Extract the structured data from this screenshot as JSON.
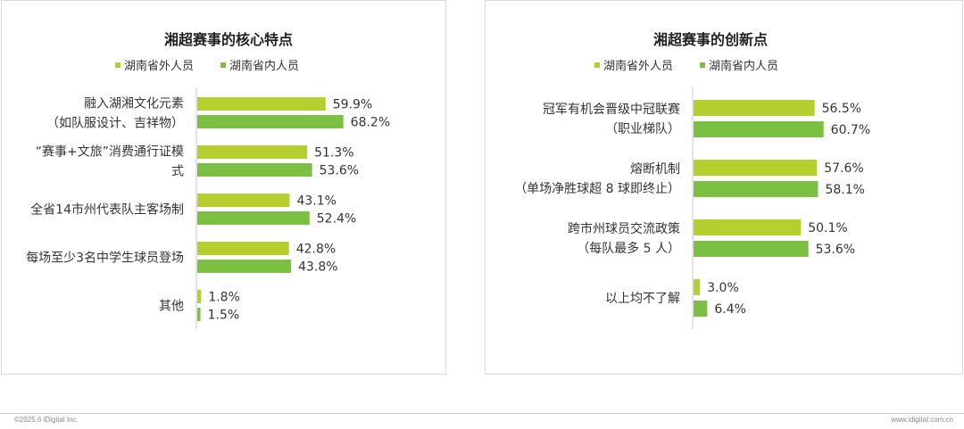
{
  "colors": {
    "outside": "#b5cf2f",
    "inside": "#7cc043",
    "axis": "#c8c8c8"
  },
  "footer": {
    "copyright": "©2025.6 iDigital Inc.",
    "website": "www.idigital.com.cn"
  },
  "chart_data": [
    {
      "type": "bar",
      "orientation": "horizontal",
      "title": "湘超赛事的核心特点",
      "legend": [
        "湖南省外人员",
        "湖南省内人员"
      ],
      "legend_position": "top",
      "categories": [
        [
          "融入湖湘文化元素",
          "（如队服设计、吉祥物）"
        ],
        [
          "“赛事+文旅”消费通行证模",
          "式"
        ],
        [
          "全省14市州代表队主客场制"
        ],
        [
          "每场至少3名中学生球员登场"
        ],
        [
          "其他"
        ]
      ],
      "series": [
        {
          "name": "湖南省外人员",
          "values": [
            59.9,
            51.3,
            43.1,
            42.8,
            1.8
          ],
          "labels": [
            "59.9%",
            "51.3%",
            "43.1%",
            "42.8%",
            "1.8%"
          ]
        },
        {
          "name": "湖南省内人员",
          "values": [
            68.2,
            53.6,
            52.4,
            43.8,
            1.5
          ],
          "labels": [
            "68.2%",
            "53.6%",
            "52.4%",
            "43.8%",
            "1.5%"
          ]
        }
      ],
      "xlim": [
        0,
        100
      ]
    },
    {
      "type": "bar",
      "orientation": "horizontal",
      "title": "湘超赛事的创新点",
      "legend": [
        "湖南省外人员",
        "湖南省内人员"
      ],
      "legend_position": "top",
      "categories": [
        [
          "冠军有机会晋级中冠联赛",
          "（职业梯队）"
        ],
        [
          "熔断机制",
          "（单场净胜球超 8 球即终止）"
        ],
        [
          "跨市州球员交流政策",
          "（每队最多 5 人）"
        ],
        [
          "以上均不了解"
        ]
      ],
      "series": [
        {
          "name": "湖南省外人员",
          "values": [
            56.5,
            57.6,
            50.1,
            3.0
          ],
          "labels": [
            "56.5%",
            "57.6%",
            "50.1%",
            "3.0%"
          ]
        },
        {
          "name": "湖南省内人员",
          "values": [
            60.7,
            58.1,
            53.6,
            6.4
          ],
          "labels": [
            "60.7%",
            "58.1%",
            "53.6%",
            "6.4%"
          ]
        }
      ],
      "xlim": [
        0,
        100
      ]
    }
  ]
}
